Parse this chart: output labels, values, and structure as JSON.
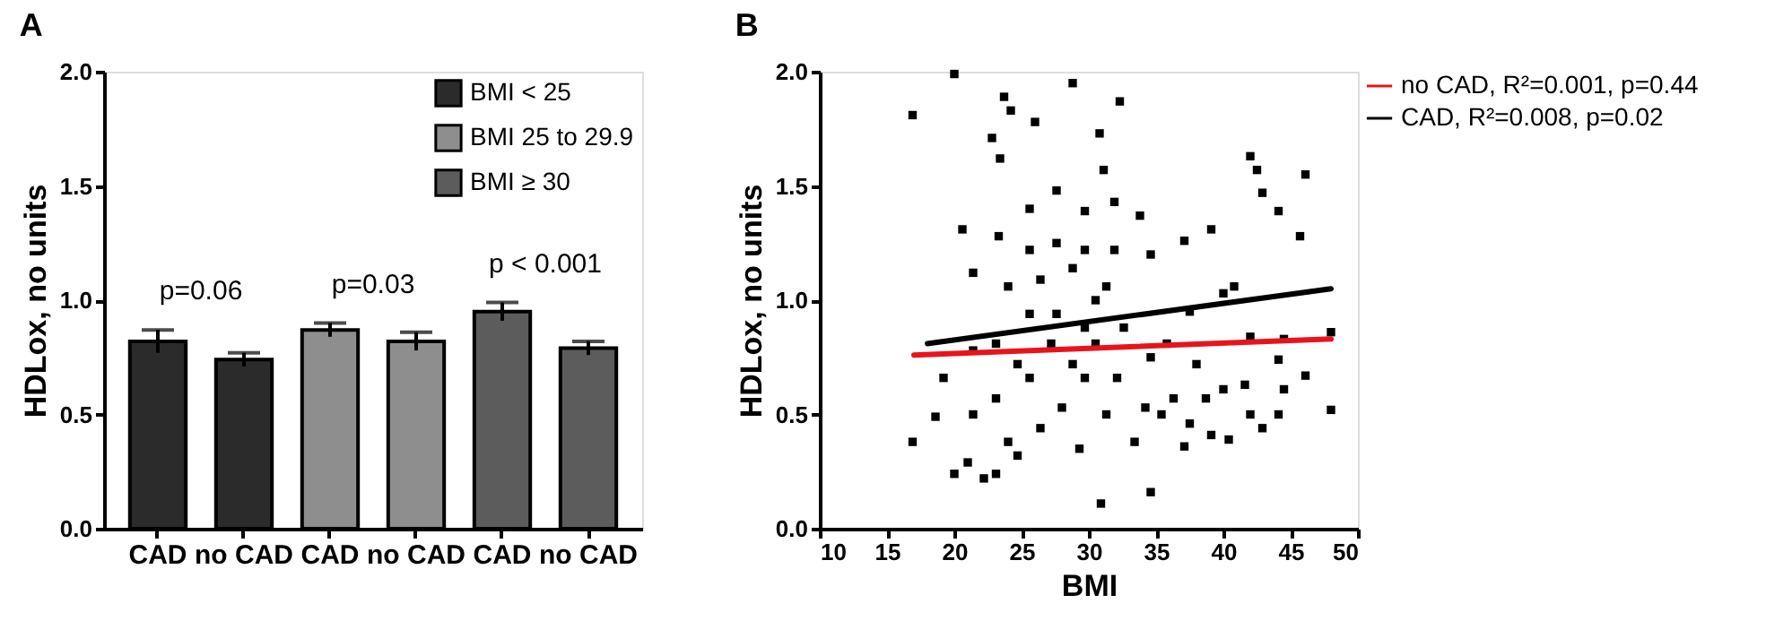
{
  "chart_data": [
    {
      "type": "bar",
      "title": "A",
      "ylabel": "HDLox, no units",
      "categories": [
        "CAD",
        "no CAD",
        "CAD",
        "no CAD",
        "CAD",
        "no CAD"
      ],
      "series": [
        {
          "name": "BMI < 25",
          "color": "#2b2b2b",
          "values": [
            0.82,
            0.74,
            null,
            null,
            null,
            null
          ],
          "errors": [
            0.05,
            0.03,
            null,
            null,
            null,
            null
          ]
        },
        {
          "name": "BMI 25 to 29.9",
          "color": "#8e8e8e",
          "values": [
            null,
            null,
            0.87,
            0.82,
            null,
            null
          ],
          "errors": [
            null,
            null,
            0.03,
            0.04,
            null,
            null
          ]
        },
        {
          "name": "BMI ≥ 30",
          "color": "#5c5c5c",
          "values": [
            null,
            null,
            null,
            null,
            0.95,
            0.79
          ],
          "errors": [
            null,
            null,
            null,
            null,
            0.04,
            0.03
          ]
        }
      ],
      "ylim": [
        0,
        2
      ],
      "yticks": [
        {
          "value": 0,
          "label": "0.0"
        },
        {
          "value": 0.5,
          "label": "0.5"
        },
        {
          "value": 1,
          "label": "1.0"
        },
        {
          "value": 1.5,
          "label": "1.5"
        },
        {
          "value": 2,
          "label": "2.0"
        }
      ],
      "annotations": [
        "p=0.06",
        "p=0.03",
        "p < 0.001"
      ],
      "legend": "top right",
      "grid": false
    },
    {
      "type": "scatter",
      "title": "B",
      "xlabel": "BMI",
      "ylabel": "HDLox, no units",
      "series": [
        {
          "type": "scatter",
          "marker": "square",
          "color": "#000000",
          "x": [
            16.9,
            16.9,
            20.0,
            23.7,
            24.2,
            26.0,
            22.8,
            23.4,
            28.8,
            32.3,
            30.8,
            31.1,
            33.8,
            42.0,
            42.5,
            42.9,
            44.1,
            46.1,
            45.7,
            39.1,
            37.1,
            20.6,
            23.3,
            25.6,
            27.6,
            29.7,
            31.9,
            34.6,
            21.4,
            24.0,
            26.4,
            28.8,
            31.3,
            40.8,
            40.0,
            37.5,
            42.0,
            44.5,
            48.0,
            46.1,
            44.1,
            44.5,
            44.1,
            41.6,
            40.0,
            40.4,
            39.1,
            37.5,
            37.1,
            34.6,
            30.9,
            20.0,
            21.0,
            22.2,
            23.1,
            18.6,
            19.2,
            21.4,
            21.4,
            23.1,
            24.0,
            24.7,
            25.6,
            26.4,
            27.2,
            28.0,
            29.3,
            29.7,
            30.5,
            31.3,
            32.1,
            33.4,
            34.2,
            35.4,
            36.3,
            34.6,
            25.6,
            27.6,
            29.7,
            23.1,
            24.7,
            28.8,
            32.6,
            35.8,
            38.0,
            38.7,
            42.9,
            42.0,
            48.0,
            25.6,
            27.6,
            29.7,
            30.5,
            31.9
          ],
          "values": [
            1.81,
            0.38,
            1.99,
            1.89,
            1.83,
            1.78,
            1.71,
            1.62,
            1.95,
            1.87,
            1.73,
            1.57,
            1.37,
            1.63,
            1.57,
            1.47,
            1.39,
            1.55,
            1.28,
            1.31,
            1.26,
            1.31,
            1.28,
            1.4,
            1.48,
            1.39,
            1.43,
            1.2,
            1.12,
            1.06,
            1.09,
            1.14,
            1.06,
            1.06,
            1.03,
            0.95,
            0.84,
            0.83,
            0.86,
            0.67,
            0.5,
            0.61,
            0.74,
            0.63,
            0.61,
            0.39,
            0.41,
            0.46,
            0.36,
            0.16,
            0.11,
            0.24,
            0.29,
            0.22,
            0.24,
            0.49,
            0.66,
            0.78,
            0.5,
            0.57,
            0.38,
            0.32,
            0.66,
            0.44,
            0.81,
            0.53,
            0.35,
            0.66,
            0.81,
            0.5,
            0.66,
            0.38,
            0.53,
            0.5,
            0.57,
            0.75,
            0.94,
            0.94,
            0.88,
            0.81,
            0.72,
            0.72,
            0.88,
            0.81,
            0.72,
            0.57,
            0.44,
            0.5,
            0.52,
            1.22,
            1.25,
            1.22,
            1.0,
            1.22
          ]
        },
        {
          "type": "line",
          "marker": "none",
          "name": "no CAD, R²=0.001, p=0.44",
          "color": "#e8141b",
          "x": [
            17,
            48
          ],
          "values": [
            0.76,
            0.83
          ]
        },
        {
          "type": "line",
          "marker": "none",
          "name": "CAD, R²=0.008, p=0.02",
          "color": "#000000",
          "x": [
            18,
            48
          ],
          "values": [
            0.81,
            1.05
          ]
        }
      ],
      "xlim": [
        10,
        50
      ],
      "xticks": [
        10,
        15,
        20,
        25,
        30,
        35,
        40,
        45,
        50
      ],
      "ylim": [
        0,
        2
      ],
      "yticks": [
        {
          "value": 0,
          "label": "0.0"
        },
        {
          "value": 0.5,
          "label": "0.5"
        },
        {
          "value": 1,
          "label": "1.0"
        },
        {
          "value": 1.5,
          "label": "1.5"
        },
        {
          "value": 2,
          "label": "2.0"
        }
      ],
      "legend": "top right",
      "grid": false
    }
  ]
}
